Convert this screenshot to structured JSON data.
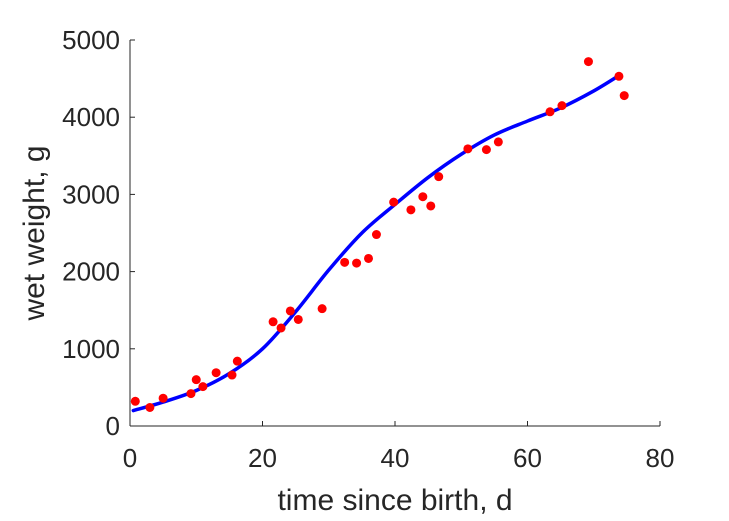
{
  "chart_data": {
    "type": "scatter",
    "title": "",
    "xlabel": "time since birth, d",
    "ylabel": "wet weight, g",
    "xlim": [
      0,
      80
    ],
    "ylim": [
      0,
      5000
    ],
    "xticks": [
      0,
      20,
      40,
      60,
      80
    ],
    "yticks": [
      0,
      1000,
      2000,
      3000,
      4000,
      5000
    ],
    "grid": false,
    "legend": "none",
    "colors": {
      "points": "#ff0000",
      "fit": "#0000ff",
      "axis": "#262626"
    },
    "series": [
      {
        "kind": "points",
        "x": [
          0.8,
          3,
          5,
          9.2,
          10,
          11,
          13,
          15.4,
          16.2,
          21.6,
          22.8,
          24.2,
          25.4,
          29,
          32.4,
          34.2,
          36,
          37.2,
          39.8,
          42.4,
          44.2,
          45.4,
          46.6,
          51,
          53.8,
          55.6,
          63.4,
          65.2,
          69.2,
          73.8,
          74.6
        ],
        "y": [
          320,
          240,
          360,
          420,
          600,
          510,
          690,
          660,
          840,
          1350,
          1270,
          1490,
          1380,
          1520,
          2120,
          2110,
          2170,
          2480,
          2900,
          2800,
          2970,
          2850,
          3230,
          3590,
          3580,
          3680,
          4070,
          4150,
          4720,
          4530,
          4280
        ]
      },
      {
        "kind": "fit",
        "x": [
          0.5,
          5,
          10,
          15,
          20,
          25,
          30,
          35,
          40,
          45,
          50,
          55,
          60,
          65,
          70,
          74
        ],
        "y": [
          200,
          310,
          460,
          680,
          1000,
          1480,
          2020,
          2500,
          2870,
          3220,
          3520,
          3770,
          3950,
          4120,
          4340,
          4550
        ]
      }
    ]
  }
}
